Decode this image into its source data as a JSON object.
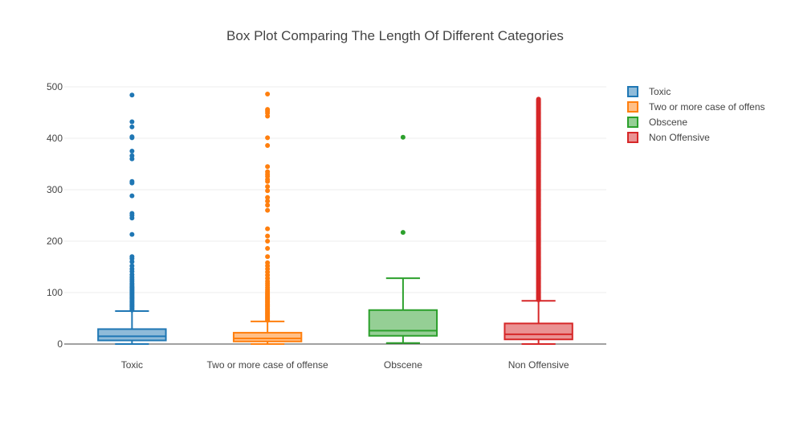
{
  "chart_data": {
    "type": "box",
    "title": "Box Plot Comparing The Length Of Different Categories",
    "xlabel": "",
    "ylabel": "",
    "ylim": [
      0,
      500
    ],
    "yticks": [
      0,
      100,
      200,
      300,
      400,
      500
    ],
    "grid": true,
    "legend_position": "top-right",
    "series": [
      {
        "name": "Toxic",
        "category": "Toxic",
        "color": "#1f77b4",
        "fill": "#8fbbd9",
        "whisker_low": 0,
        "q1": 7,
        "median": 15,
        "q3": 29,
        "whisker_high": 64,
        "outliers": [
          66,
          68,
          70,
          72,
          74,
          76,
          78,
          80,
          82,
          84,
          86,
          88,
          90,
          92,
          94,
          96,
          98,
          100,
          102,
          104,
          106,
          108,
          110,
          112,
          115,
          118,
          122,
          126,
          130,
          135,
          141,
          146,
          152,
          160,
          166,
          170,
          213,
          245,
          250,
          254,
          288,
          313,
          316,
          360,
          366,
          375,
          401,
          403,
          422,
          432,
          484
        ]
      },
      {
        "name": "Two or more case of offens",
        "category": "Two or more case of offense",
        "color": "#ff7f0e",
        "fill": "#ffbf87",
        "whisker_low": 0,
        "q1": 5,
        "median": 11,
        "q3": 22,
        "whisker_high": 44,
        "outliers": [
          46,
          48,
          50,
          52,
          54,
          56,
          58,
          60,
          62,
          64,
          66,
          68,
          70,
          72,
          74,
          76,
          78,
          80,
          82,
          84,
          86,
          88,
          90,
          92,
          94,
          96,
          98,
          100,
          103,
          106,
          110,
          114,
          118,
          122,
          128,
          134,
          140,
          146,
          152,
          158,
          170,
          186,
          200,
          210,
          224,
          260,
          270,
          278,
          285,
          298,
          306,
          316,
          320,
          326,
          330,
          335,
          345,
          386,
          401,
          443,
          449,
          453,
          456,
          486
        ]
      },
      {
        "name": "Obscene",
        "category": "Obscene",
        "color": "#2ca02c",
        "fill": "#95cf95",
        "whisker_low": 2,
        "q1": 16,
        "median": 26,
        "q3": 66,
        "whisker_high": 128,
        "outliers": [
          217,
          402
        ]
      },
      {
        "name": "Non Offensive",
        "category": "Non Offensive",
        "color": "#d62728",
        "fill": "#ea9293",
        "whisker_low": 0,
        "q1": 9,
        "median": 19,
        "q3": 40,
        "whisker_high": 84,
        "outliers_dense_range": [
          86,
          476
        ]
      }
    ]
  }
}
